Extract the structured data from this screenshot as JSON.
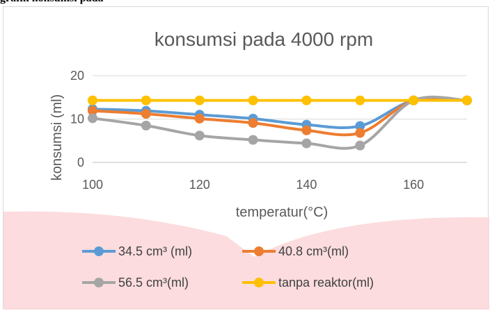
{
  "page_heading": "grafik konsumsi pada",
  "chart_data": {
    "type": "line",
    "title": "konsumsi pada  4000 rpm",
    "xlabel": "temperatur(°C)",
    "ylabel": "konsumsi (ml)",
    "x": [
      100,
      110,
      120,
      130,
      140,
      150,
      160,
      170
    ],
    "xlim": [
      100,
      170
    ],
    "xticks": [
      100,
      120,
      140,
      160
    ],
    "ylim": [
      0,
      20
    ],
    "yticks": [
      0,
      10,
      20
    ],
    "grid": "horizontal",
    "legend_position": "bottom",
    "series": [
      {
        "name": "34.5 cm³ (ml)",
        "color": "#5b9bd5",
        "values": [
          12.3,
          11.9,
          11.0,
          10.1,
          8.7,
          8.4,
          14.3,
          14.3
        ]
      },
      {
        "name": "40.8 cm³(ml)",
        "color": "#ed7d31",
        "values": [
          11.9,
          11.2,
          10.1,
          9.1,
          7.4,
          6.8,
          14.3,
          14.3
        ]
      },
      {
        "name": "56.5 cm³(ml)",
        "color": "#a5a5a5",
        "values": [
          10.2,
          8.5,
          6.2,
          5.2,
          4.4,
          3.9,
          14.3,
          14.3
        ]
      },
      {
        "name": "tanpa reaktor(ml)",
        "color": "#ffc000",
        "values": [
          14.3,
          14.3,
          14.3,
          14.3,
          14.3,
          14.3,
          14.3,
          14.3
        ]
      }
    ]
  }
}
